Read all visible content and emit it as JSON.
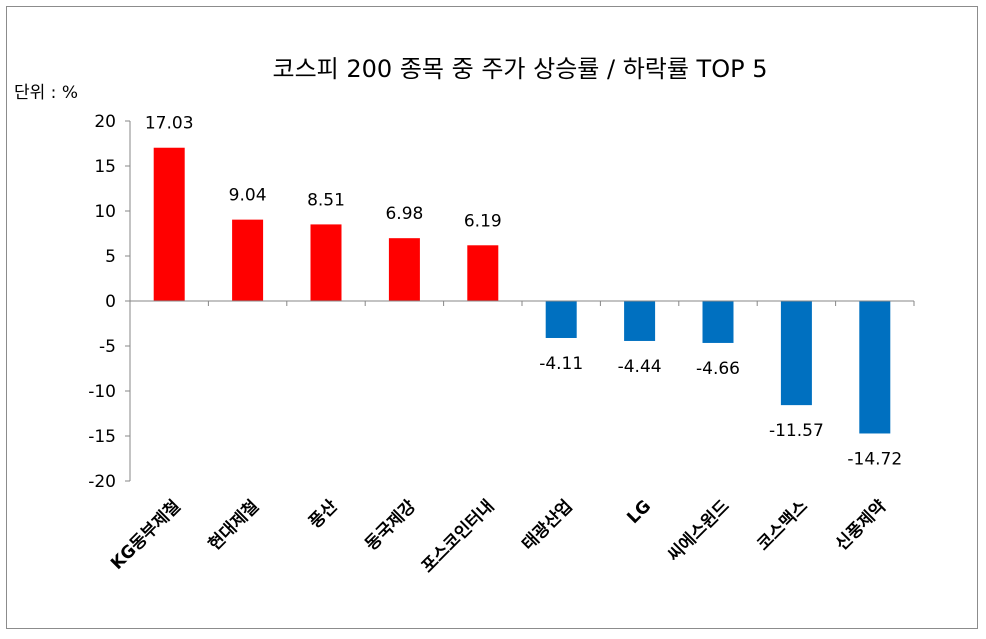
{
  "chart_data": {
    "type": "bar",
    "title": "코스피 200 종목 중  주가 상승률 / 하락률 TOP 5",
    "unit_label": "단위 : %",
    "categories": [
      "KG동부제철",
      "현대제철",
      "풍산",
      "동국제강",
      "포스코인터내",
      "태광산업",
      "LG",
      "씨에스윈드",
      "코스맥스",
      "신풍제약"
    ],
    "values": [
      17.03,
      9.04,
      8.51,
      6.98,
      6.19,
      -4.11,
      -4.44,
      -4.66,
      -11.57,
      -14.72
    ],
    "value_labels": [
      "17.03",
      "9.04",
      "8.51",
      "6.98",
      "6.19",
      "-4.11",
      "-4.44",
      "-4.66",
      "-11.57",
      "-14.72"
    ],
    "ylim": [
      -20,
      20
    ],
    "yticks": [
      20,
      15,
      10,
      5,
      0,
      -5,
      -10,
      -15,
      -20
    ],
    "ytick_labels": [
      "20",
      "15",
      "10",
      "5",
      "0",
      "-5",
      "-10",
      "-15",
      "-20"
    ],
    "colors": {
      "positive": "#ff0000",
      "negative": "#0070c0",
      "axis": "#878787"
    },
    "xlabel": "",
    "ylabel": "",
    "grid": false,
    "legend": "none"
  }
}
